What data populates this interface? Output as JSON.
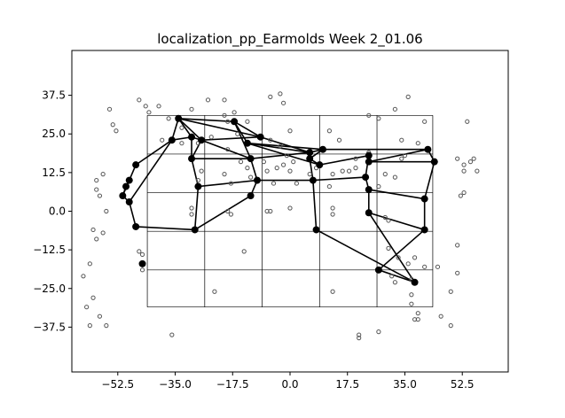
{
  "chart_data": {
    "type": "scatter",
    "title": "localization_pp_Earmolds Week 2_01.06",
    "xlabel": "",
    "ylabel": "",
    "xlim": [
      -66.5,
      66.5
    ],
    "ylim": [
      -52,
      52
    ],
    "xticks": [
      -52.5,
      -35.0,
      -17.5,
      0.0,
      17.5,
      35.0,
      52.5
    ],
    "xtick_labels": [
      "−52.5",
      "−35.0",
      "−17.5",
      "0.0",
      "17.5",
      "35.0",
      "52.5"
    ],
    "yticks": [
      -37.5,
      -25.0,
      -12.5,
      0.0,
      12.5,
      25.0,
      37.5
    ],
    "ytick_labels": [
      "−37.5",
      "−25.0",
      "−12.5",
      "0.0",
      "12.5",
      "25.0",
      "37.5"
    ],
    "grid": false,
    "reference_grid": {
      "x_lines": [
        -43.5,
        -26,
        -8.5,
        9,
        26.5,
        43.5
      ],
      "y_lines": [
        31,
        18.5,
        6,
        -6.5,
        -19,
        -31
      ]
    },
    "unconnected_points": [
      [
        -55,
        33
      ],
      [
        -44,
        34
      ],
      [
        -46,
        36
      ],
      [
        -43,
        32
      ],
      [
        -40,
        34
      ],
      [
        -37,
        30
      ],
      [
        -30,
        33
      ],
      [
        -25,
        36
      ],
      [
        -20,
        36
      ],
      [
        -20,
        31
      ],
      [
        -19,
        29
      ],
      [
        -17,
        32
      ],
      [
        -13,
        29
      ],
      [
        -6,
        37
      ],
      [
        -3,
        38
      ],
      [
        -2,
        35
      ],
      [
        -16,
        25
      ],
      [
        -19,
        20
      ],
      [
        -6,
        23
      ],
      [
        -3,
        21
      ],
      [
        -8,
        16
      ],
      [
        -7,
        13
      ],
      [
        0,
        26
      ],
      [
        1,
        16
      ],
      [
        2,
        9
      ],
      [
        6,
        12
      ],
      [
        8,
        14
      ],
      [
        12,
        26
      ],
      [
        15,
        23
      ],
      [
        16,
        13
      ],
      [
        13,
        12
      ],
      [
        12,
        8
      ],
      [
        18,
        13
      ],
      [
        20,
        17
      ],
      [
        20,
        14
      ],
      [
        24,
        19
      ],
      [
        27,
        8
      ],
      [
        24,
        31
      ],
      [
        27,
        30
      ],
      [
        32,
        33
      ],
      [
        34,
        23
      ],
      [
        36,
        37
      ],
      [
        39,
        22
      ],
      [
        41,
        29
      ],
      [
        29,
        12
      ],
      [
        32,
        11
      ],
      [
        34,
        17
      ],
      [
        35,
        18
      ],
      [
        -54,
        28
      ],
      [
        -53,
        26
      ],
      [
        -39,
        23
      ],
      [
        -33,
        27
      ],
      [
        -33,
        22
      ],
      [
        -28,
        22
      ],
      [
        -24,
        24
      ],
      [
        -27,
        13
      ],
      [
        -28,
        10
      ],
      [
        -20,
        12
      ],
      [
        -18,
        9
      ],
      [
        -15,
        16
      ],
      [
        -13,
        14
      ],
      [
        -12,
        11
      ],
      [
        -5,
        9
      ],
      [
        -4,
        14
      ],
      [
        -2,
        15
      ],
      [
        0,
        13
      ],
      [
        -1,
        18
      ],
      [
        -30,
        1
      ],
      [
        -30,
        -1
      ],
      [
        -19,
        0
      ],
      [
        -18,
        -1
      ],
      [
        -7,
        0
      ],
      [
        -6,
        0
      ],
      [
        0,
        1
      ],
      [
        13,
        1
      ],
      [
        13,
        -1
      ],
      [
        29,
        -2
      ],
      [
        30,
        -3
      ],
      [
        30,
        -12
      ],
      [
        33,
        -15
      ],
      [
        36,
        -17
      ],
      [
        37,
        -22
      ],
      [
        38,
        -15
      ],
      [
        41,
        -18
      ],
      [
        45,
        -18
      ],
      [
        -57,
        12
      ],
      [
        -59,
        10
      ],
      [
        -59,
        7
      ],
      [
        -58,
        5
      ],
      [
        -56,
        0
      ],
      [
        -57,
        -7
      ],
      [
        -59,
        -9
      ],
      [
        -60,
        -6
      ],
      [
        -61,
        -17
      ],
      [
        -63,
        -21
      ],
      [
        -62,
        -31
      ],
      [
        -61,
        -37
      ],
      [
        -58,
        -34
      ],
      [
        -56,
        -37
      ],
      [
        -60,
        -28
      ],
      [
        -46,
        -13
      ],
      [
        -45,
        -14
      ],
      [
        -45,
        -19
      ],
      [
        -36,
        -40
      ],
      [
        -23,
        -26
      ],
      [
        -14,
        -13
      ],
      [
        13,
        -26
      ],
      [
        21,
        -41
      ],
      [
        21,
        -40
      ],
      [
        27,
        -39
      ],
      [
        31,
        -21
      ],
      [
        32,
        -23
      ],
      [
        37,
        -27
      ],
      [
        37,
        -30
      ],
      [
        38,
        -35
      ],
      [
        39,
        -33
      ],
      [
        39,
        -35
      ],
      [
        46,
        -34
      ],
      [
        49,
        -26
      ],
      [
        49,
        -37
      ],
      [
        51,
        -20
      ],
      [
        51,
        -11
      ],
      [
        52,
        5
      ],
      [
        53,
        6
      ],
      [
        53,
        13
      ],
      [
        53,
        15
      ],
      [
        55,
        16
      ],
      [
        56,
        17
      ],
      [
        57,
        13
      ],
      [
        54,
        29
      ],
      [
        51,
        17
      ]
    ],
    "connected_points": [
      [
        -34,
        30
      ],
      [
        -17,
        29
      ],
      [
        -9,
        24
      ],
      [
        -27,
        23
      ],
      [
        -30,
        24
      ],
      [
        -36,
        23
      ],
      [
        -13,
        22
      ],
      [
        -30,
        17
      ],
      [
        -12,
        17
      ],
      [
        6,
        19
      ],
      [
        10,
        20
      ],
      [
        6,
        17
      ],
      [
        9,
        15
      ],
      [
        24,
        18
      ],
      [
        24,
        16
      ],
      [
        42,
        20
      ],
      [
        44,
        16
      ],
      [
        -47,
        15
      ],
      [
        -49,
        10
      ],
      [
        -50,
        8
      ],
      [
        -51,
        5
      ],
      [
        -49,
        3
      ],
      [
        -47,
        -5
      ],
      [
        -45,
        -17
      ],
      [
        -28,
        8
      ],
      [
        -10,
        10
      ],
      [
        -12,
        5
      ],
      [
        7,
        10
      ],
      [
        8,
        -6
      ],
      [
        23,
        11
      ],
      [
        24,
        7
      ],
      [
        24,
        -0.5
      ],
      [
        41,
        4
      ],
      [
        41,
        -6
      ],
      [
        27,
        -19
      ],
      [
        38,
        -23
      ],
      [
        -29,
        -6
      ]
    ],
    "connections": [
      [
        0,
        1
      ],
      [
        0,
        3
      ],
      [
        0,
        2
      ],
      [
        1,
        6
      ],
      [
        2,
        3
      ],
      [
        3,
        4
      ],
      [
        4,
        5
      ],
      [
        5,
        0
      ],
      [
        4,
        7
      ],
      [
        1,
        8
      ],
      [
        7,
        8
      ],
      [
        8,
        9
      ],
      [
        9,
        10
      ],
      [
        10,
        11
      ],
      [
        11,
        12
      ],
      [
        12,
        13
      ],
      [
        13,
        14
      ],
      [
        14,
        15
      ],
      [
        15,
        16
      ],
      [
        2,
        9
      ],
      [
        10,
        15
      ],
      [
        5,
        17
      ],
      [
        17,
        18
      ],
      [
        18,
        19
      ],
      [
        19,
        20
      ],
      [
        20,
        21
      ],
      [
        21,
        22
      ],
      [
        7,
        24
      ],
      [
        24,
        36
      ],
      [
        36,
        22
      ],
      [
        3,
        8
      ],
      [
        6,
        12
      ],
      [
        8,
        25
      ],
      [
        25,
        26
      ],
      [
        26,
        36
      ],
      [
        25,
        27
      ],
      [
        27,
        28
      ],
      [
        28,
        35
      ],
      [
        11,
        27
      ],
      [
        13,
        29
      ],
      [
        29,
        30
      ],
      [
        30,
        31
      ],
      [
        31,
        35
      ],
      [
        16,
        32
      ],
      [
        32,
        33
      ],
      [
        33,
        34
      ],
      [
        34,
        35
      ],
      [
        30,
        32
      ],
      [
        6,
        10
      ],
      [
        24,
        25
      ],
      [
        5,
        21
      ],
      [
        3,
        7
      ],
      [
        20,
        18
      ],
      [
        14,
        16
      ],
      [
        6,
        9
      ],
      [
        1,
        2
      ],
      [
        0,
        4
      ],
      [
        31,
        33
      ],
      [
        27,
        29
      ]
    ]
  }
}
